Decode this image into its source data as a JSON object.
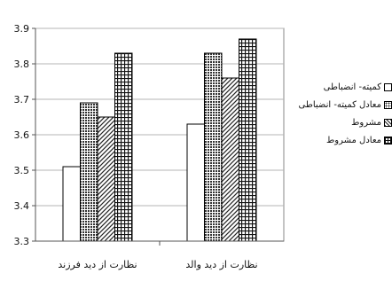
{
  "chart_data": {
    "type": "bar",
    "categories": [
      "نظارت از دید فرزند",
      "نظارت از دید والد"
    ],
    "series": [
      {
        "name": "کمیته- انضباطی",
        "values": [
          3.51,
          3.63
        ],
        "pattern": "white"
      },
      {
        "name": "معادل کمیته- انضباطی",
        "values": [
          3.69,
          3.83
        ],
        "pattern": "dots"
      },
      {
        "name": "مشروط",
        "values": [
          3.65,
          3.76
        ],
        "pattern": "diagonal"
      },
      {
        "name": "معادل مشروط",
        "values": [
          3.83,
          3.87
        ],
        "pattern": "grid"
      }
    ],
    "yticks": [
      "3.3",
      "3.4",
      "3.5",
      "3.6",
      "3.7",
      "3.8",
      "3.9"
    ],
    "ylim": [
      3.3,
      3.9
    ],
    "title": "",
    "xlabel": "",
    "ylabel": "",
    "grid": "horizontal",
    "legend_position": "right"
  }
}
